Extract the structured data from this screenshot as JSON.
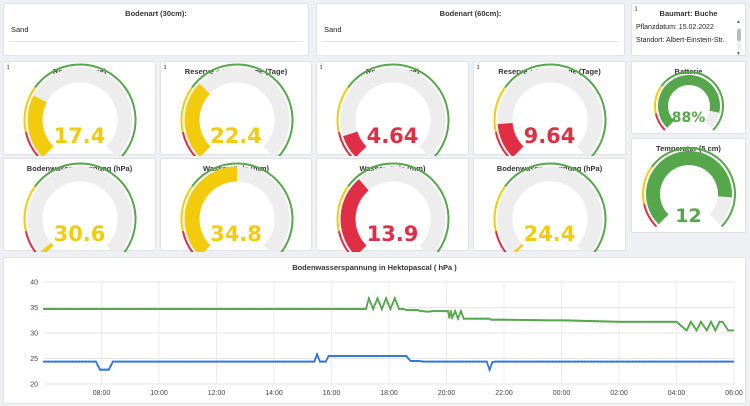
{
  "top_row": {
    "soil30": {
      "title": "Bodenart (30cm):",
      "value": "Sand"
    },
    "soil60": {
      "title": "Bodenart (60cm):",
      "value": "Sand"
    },
    "tree": {
      "title": "Baumart: Buche",
      "line1": "Pflanzdatum: 15.02.2022",
      "line2": "Standort: Albert-Einstein-Str."
    }
  },
  "info_icon": "i",
  "gauges": [
    {
      "key": "g1",
      "title": "Reserve (Tage)",
      "value": "17.4",
      "fraction": 0.27,
      "color": "#f2cc0c"
    },
    {
      "key": "g2",
      "title": "Reserve + Vorhersage (Tage)",
      "value": "22.4",
      "fraction": 0.33,
      "color": "#f2cc0c"
    },
    {
      "key": "g3",
      "title": "Reserve (Tage)",
      "value": "4.64",
      "fraction": 0.1,
      "color": "#e02f44"
    },
    {
      "key": "g4",
      "title": "Reserve + Vorhersage (Tage)",
      "value": "9.64",
      "fraction": 0.15,
      "color": "#e02f44"
    },
    {
      "key": "g5",
      "title": "Bodenwasserspannung (hPa)",
      "value": "30.6",
      "fraction": 0.02,
      "color": "#f2cc0c"
    },
    {
      "key": "g6",
      "title": "Wassersäule (mm)",
      "value": "34.8",
      "fraction": 0.5,
      "color": "#f2cc0c"
    },
    {
      "key": "g7",
      "title": "Wassersäule (mm)",
      "value": "13.9",
      "fraction": 0.35,
      "color": "#e02f44"
    },
    {
      "key": "g8",
      "title": "Bodenwasserspannung (hPa)",
      "value": "24.4",
      "fraction": 0.01,
      "color": "#f2cc0c"
    },
    {
      "key": "g9",
      "title": "Batterie",
      "value": "88%",
      "fraction": 0.88,
      "color": "#56a64b"
    },
    {
      "key": "g10",
      "title": "Temperatur (5 cm)",
      "value": "12",
      "fraction": 0.85,
      "color": "#56a64b"
    }
  ],
  "threshold_colors": {
    "red": "#e02f44",
    "yellow": "#f2cc0c",
    "green": "#56a64b"
  },
  "chart_data": {
    "type": "line",
    "title": "Bodenwasserspannung in Hektopascal ( hPa )",
    "xlabel": "",
    "ylabel": "",
    "xlim": [
      "06:00",
      "06:00"
    ],
    "x_ticks": [
      "08:00",
      "10:00",
      "12:00",
      "14:00",
      "16:00",
      "18:00",
      "20:00",
      "22:00",
      "00:00",
      "02:00",
      "04:00",
      "06:00"
    ],
    "ylim": [
      20,
      40
    ],
    "y_ticks": [
      "20",
      "25",
      "30",
      "35",
      "40"
    ],
    "grid": true,
    "series": [
      {
        "color": "#56a64b",
        "x": [
          6,
          17.2,
          17.3,
          17.45,
          17.6,
          17.75,
          17.9,
          18.05,
          18.2,
          18.35,
          18.5,
          18.6,
          19,
          19.1,
          19.15,
          19.3,
          19.4,
          19.5,
          20.05,
          20.1,
          20.15,
          20.2,
          20.3,
          20.4,
          20.5,
          20.6,
          20.7,
          20.8,
          21.5,
          21.55,
          22,
          23.5,
          24,
          26,
          28,
          28.35,
          28.5,
          28.7,
          28.85,
          29.05,
          29.2,
          29.35,
          29.5,
          29.6,
          29.8,
          29.9,
          30
        ],
        "y": [
          34.7,
          34.7,
          36.8,
          34.7,
          36.8,
          34.7,
          36.8,
          34.7,
          36.8,
          34.7,
          34.7,
          34.5,
          34.5,
          34.3,
          34.3,
          34.2,
          34.2,
          34.3,
          34.3,
          33,
          34.3,
          33,
          34.3,
          32.8,
          34.3,
          32.8,
          32.8,
          32.8,
          32.8,
          32.6,
          32.6,
          32.5,
          32.5,
          32.2,
          32.2,
          30.5,
          32.2,
          30.5,
          32.2,
          30.5,
          32.2,
          30.5,
          32.2,
          32.2,
          30.5,
          30.5,
          30.5
        ]
      },
      {
        "color": "#3274d9",
        "x": [
          6,
          7.8,
          7.95,
          8.25,
          8.4,
          15.4,
          15.5,
          15.6,
          15.8,
          15.9,
          18.6,
          18.75,
          19.05,
          19.2,
          21.4,
          21.5,
          21.6,
          21.7,
          22,
          30
        ],
        "y": [
          24.4,
          24.4,
          22.8,
          22.8,
          24.4,
          24.4,
          25.8,
          24.4,
          24.4,
          25.5,
          25.5,
          24.5,
          24.5,
          24.4,
          24.4,
          22.8,
          24.3,
          24.4,
          24.4,
          24.4
        ],
        "dips": [
          {
            "x": 16.5,
            "y": 24.3
          },
          {
            "x": 17.6,
            "y": 24.3
          }
        ]
      }
    ]
  }
}
